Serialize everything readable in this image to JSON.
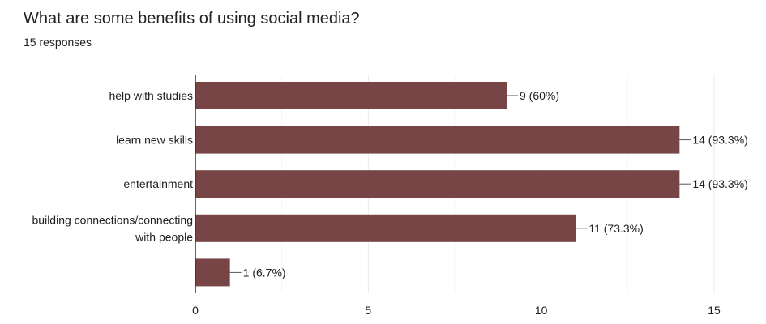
{
  "question": {
    "title": "What are some benefits of using social media?",
    "responses": "15 responses"
  },
  "colors": {
    "bar": "#774545",
    "grid": "#e9e9e9",
    "axis": "#333333"
  },
  "chart_data": {
    "type": "bar",
    "orientation": "horizontal",
    "categories": [
      [
        "help with studies"
      ],
      [
        "learn new skills"
      ],
      [
        "entertainment"
      ],
      [
        "building connections/connecting",
        "with people"
      ],
      [
        ""
      ]
    ],
    "values": [
      9,
      14,
      14,
      11,
      1
    ],
    "data_labels": [
      "9 (60%)",
      "14 (93.3%)",
      "14 (93.3%)",
      "11 (73.3%)",
      "1 (6.7%)"
    ],
    "xlim": [
      0,
      15
    ],
    "x_ticks": [
      0,
      5,
      10,
      15
    ],
    "grid": true
  }
}
